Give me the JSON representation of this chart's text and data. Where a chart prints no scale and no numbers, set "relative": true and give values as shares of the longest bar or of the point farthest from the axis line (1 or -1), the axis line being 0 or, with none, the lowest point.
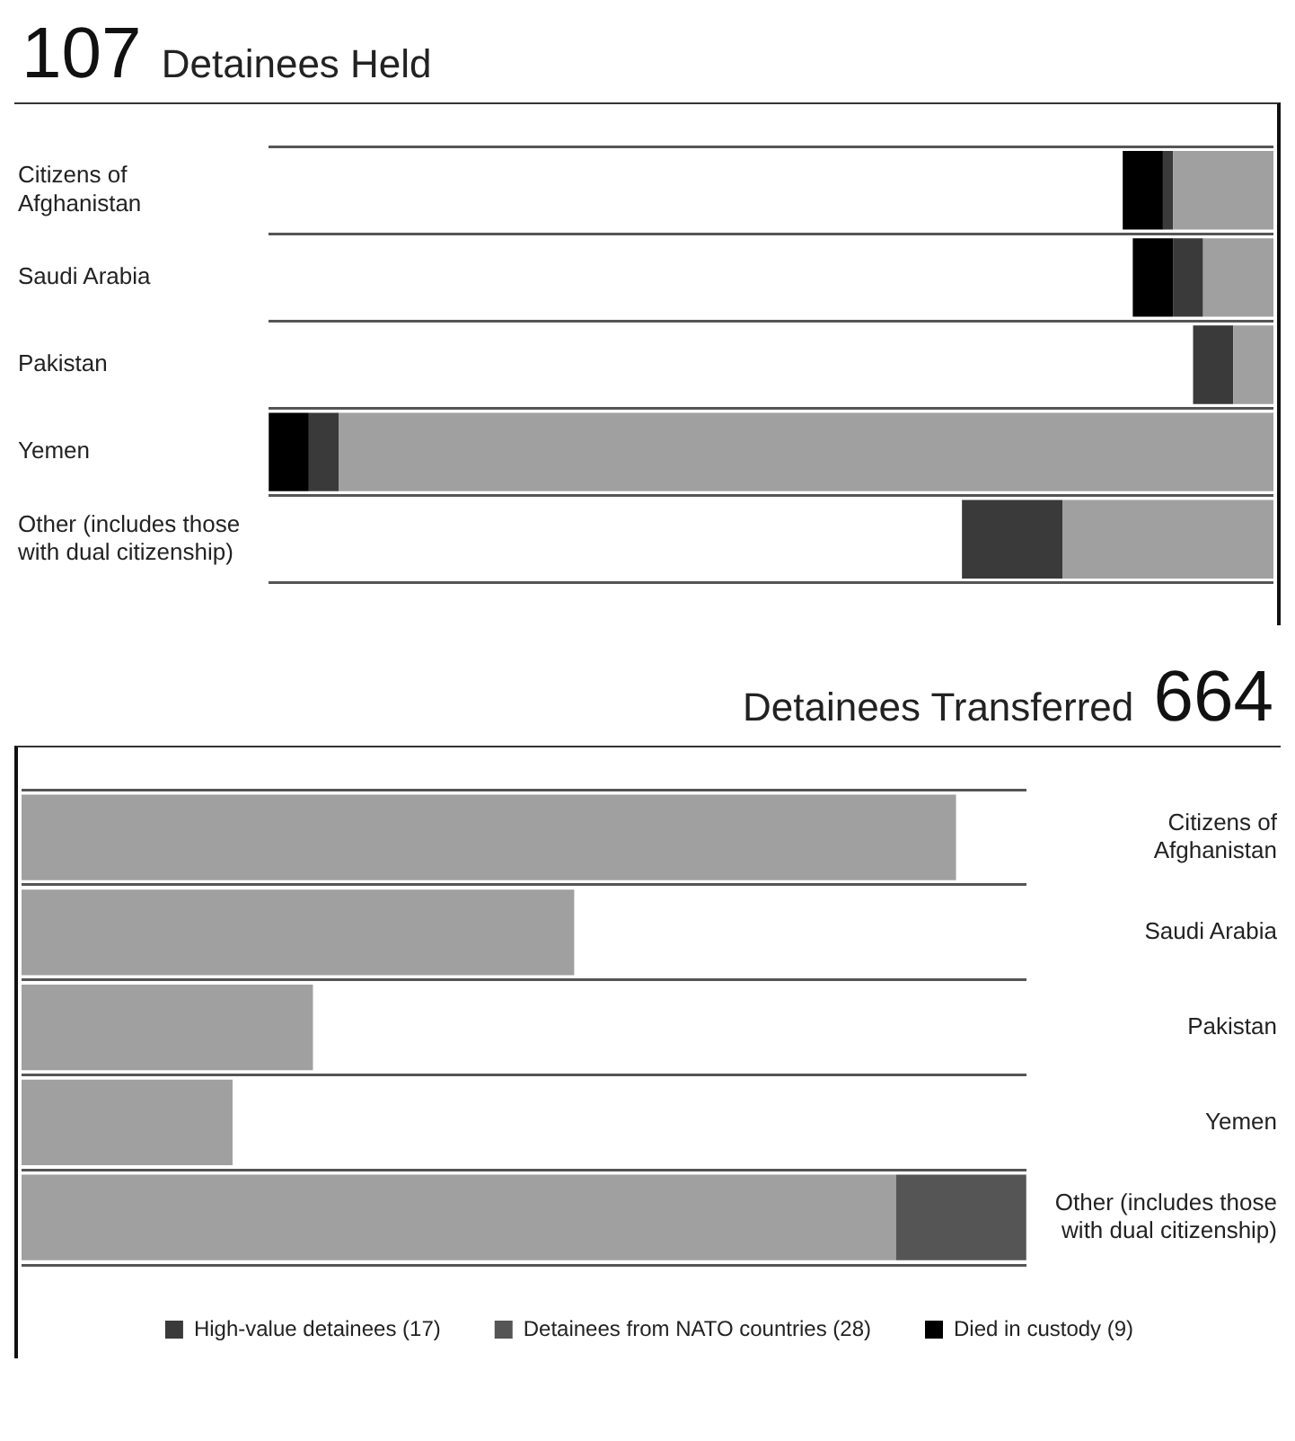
{
  "chart_data": [
    {
      "type": "bar",
      "title": "107 Detainees Held",
      "orientation": "horizontal",
      "stacked": true,
      "relative": true,
      "grid": "y",
      "legend": false,
      "categories": [
        "Citizens of Afghanistan",
        "Saudi Arabia",
        "Pakistan",
        "Yemen",
        "Other (includes those with dual citizenship)"
      ],
      "series": [
        {
          "color": "#a0a0a0",
          "values": [
            0.1,
            0.07,
            0.04,
            0.93,
            0.21
          ]
        },
        {
          "color": "#3a3a3a",
          "values": [
            0.01,
            0.03,
            0.04,
            0.03,
            0.1
          ]
        },
        {
          "color": "#000000",
          "values": [
            0.04,
            0.04,
            0,
            0.04,
            0
          ]
        }
      ]
    },
    {
      "type": "bar",
      "title": "Detainees Transferred 664",
      "orientation": "horizontal",
      "stacked": true,
      "relative": true,
      "grid": "y",
      "legend": "bottom",
      "categories": [
        "Citizens of Afghanistan",
        "Saudi Arabia",
        "Pakistan",
        "Yemen",
        "Other (includes those with dual citizenship)"
      ],
      "series": [
        {
          "color": "#a0a0a0",
          "values": [
            0.93,
            0.55,
            0.29,
            0.21,
            0.87
          ]
        },
        {
          "name": "High-value detainees (17)",
          "color": "#3a3a3a",
          "values": [
            0,
            0,
            0,
            0,
            0
          ]
        },
        {
          "name": "Detainees from NATO countries (28)",
          "color": "#555555",
          "values": [
            0,
            0,
            0,
            0,
            0.13
          ]
        },
        {
          "name": "Died in custody (9)",
          "color": "#000000",
          "values": [
            0,
            0,
            0,
            0,
            0
          ]
        }
      ]
    }
  ]
}
